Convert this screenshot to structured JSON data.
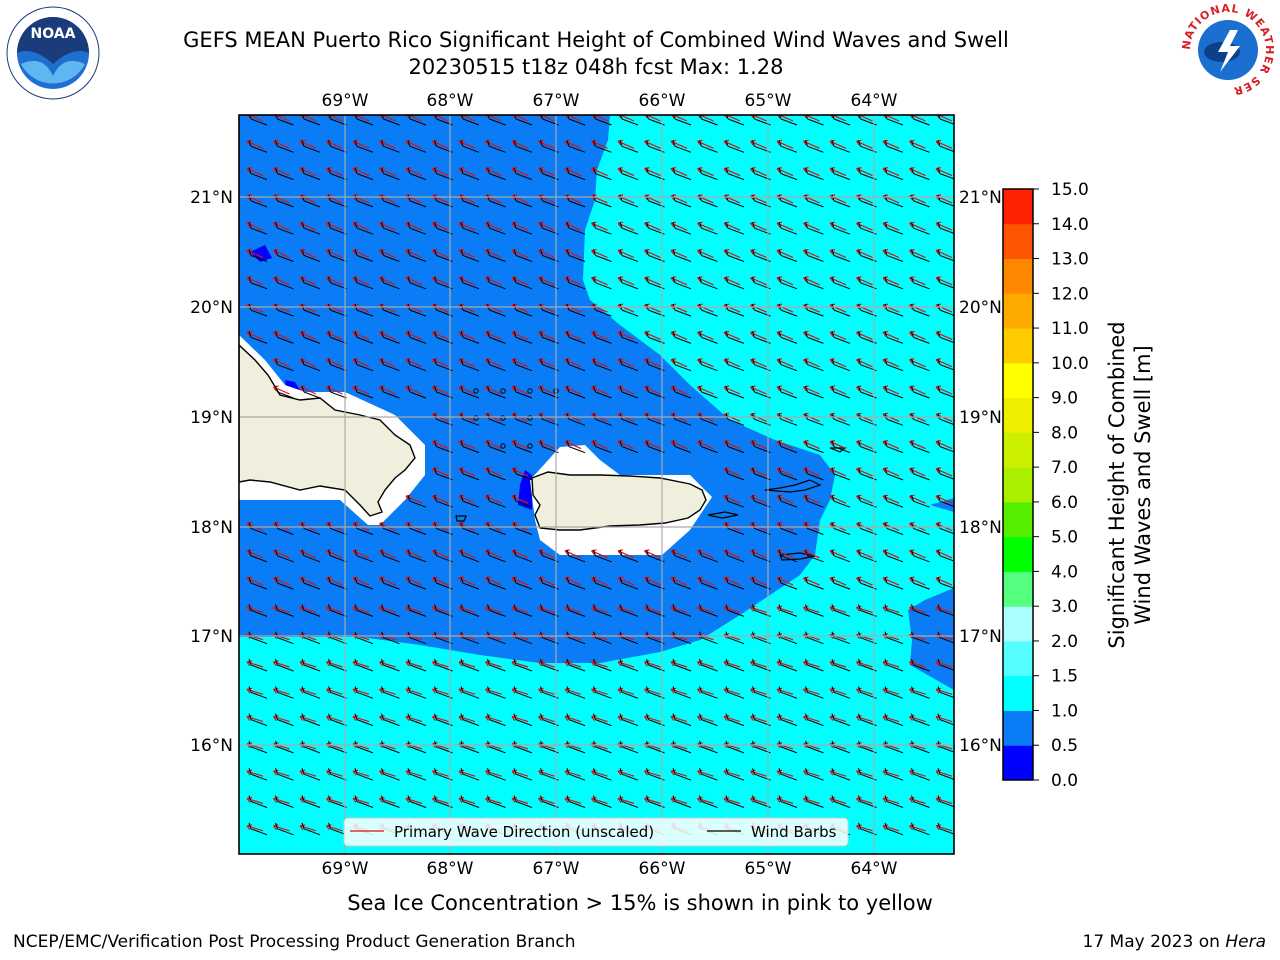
{
  "header": {
    "title_line1": "GEFS MEAN Puerto Rico Significant Height of Combined Wind Waves and Swell",
    "title_line2": "20230515 t18z 048h fcst   Max: 1.28"
  },
  "logos": {
    "left": {
      "name": "noaa-logo",
      "text": "NOAA"
    },
    "right": {
      "name": "nws-logo",
      "text": "NATIONAL WEATHER SERVICE"
    }
  },
  "map": {
    "lon_labels": [
      "69°W",
      "68°W",
      "67°W",
      "66°W",
      "65°W",
      "64°W"
    ],
    "lat_labels": [
      "21°N",
      "20°N",
      "19°N",
      "18°N",
      "17°N",
      "16°N"
    ],
    "colors": {
      "ocean_dark": "#0a7cf5",
      "ocean_light": "#00ffff",
      "land": "#f0eedd",
      "ice_mask": "#ffffff",
      "low": "#0000ff"
    },
    "legend": {
      "wave_direction": "Primary Wave Direction (unscaled)",
      "wind_barbs": "Wind Barbs"
    }
  },
  "colorbar": {
    "label_line1": "Significant Height of Combined",
    "label_line2": "Wind Waves and Swell [m]",
    "ticks": [
      "0.0",
      "0.5",
      "1.0",
      "1.5",
      "2.0",
      "3.0",
      "4.0",
      "5.0",
      "6.0",
      "7.0",
      "8.0",
      "9.0",
      "10.0",
      "11.0",
      "12.0",
      "13.0",
      "14.0",
      "15.0"
    ],
    "colors": [
      "#0000ff",
      "#0a7cf5",
      "#00ffff",
      "#55ffff",
      "#aaffff",
      "#55ff7f",
      "#00ff00",
      "#55ee00",
      "#aaee00",
      "#ccf000",
      "#eeee00",
      "#ffff00",
      "#ffcc00",
      "#ffaa00",
      "#ff8800",
      "#ff5500",
      "#ff2200",
      "#ff0000"
    ]
  },
  "subtitle": "Sea Ice Concentration > 15% is shown in pink to yellow",
  "footer": {
    "left": "NCEP/EMC/Verification Post Processing Product Generation Branch",
    "right_prefix": "17 May 2023 on ",
    "right_host": "Hera"
  }
}
